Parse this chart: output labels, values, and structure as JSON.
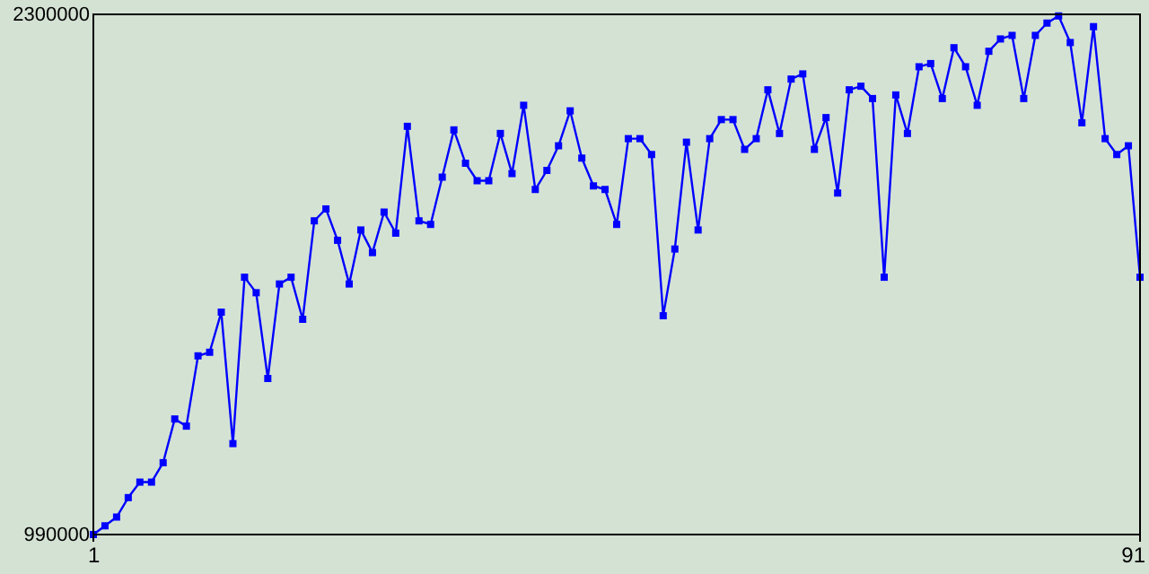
{
  "chart_data": {
    "type": "line",
    "x": [
      1,
      2,
      3,
      4,
      5,
      6,
      7,
      8,
      9,
      10,
      11,
      12,
      13,
      14,
      15,
      16,
      17,
      18,
      19,
      20,
      21,
      22,
      23,
      24,
      25,
      26,
      27,
      28,
      29,
      30,
      31,
      32,
      33,
      34,
      35,
      36,
      37,
      38,
      39,
      40,
      41,
      42,
      43,
      44,
      45,
      46,
      47,
      48,
      49,
      50,
      51,
      52,
      53,
      54,
      55,
      56,
      57,
      58,
      59,
      60,
      61,
      62,
      63,
      64,
      65,
      66,
      67,
      68,
      69,
      70,
      71,
      72,
      73,
      74,
      75,
      76,
      77,
      78,
      79,
      80,
      81,
      82,
      83,
      84,
      85,
      86,
      87,
      88,
      89,
      90,
      91
    ],
    "series": [
      {
        "color": "#0000ff",
        "values": [
          990000,
          1012000,
          1034000,
          1083000,
          1122000,
          1122000,
          1171000,
          1281000,
          1263000,
          1440000,
          1449000,
          1550000,
          1219000,
          1638000,
          1599000,
          1383000,
          1621000,
          1638000,
          1532000,
          1780000,
          1810000,
          1731000,
          1621000,
          1757000,
          1700000,
          1802000,
          1749000,
          2018000,
          1780000,
          1771000,
          1890000,
          2009000,
          1925000,
          1881000,
          1881000,
          2000000,
          1899000,
          2071000,
          1859000,
          1907000,
          1969000,
          2057000,
          1938000,
          1868000,
          1859000,
          1771000,
          1987000,
          1987000,
          1947000,
          1541000,
          1709000,
          1978000,
          1757000,
          1987000,
          2035000,
          2035000,
          1960000,
          1987000,
          2110000,
          2000000,
          2137000,
          2150000,
          1960000,
          2040000,
          1850000,
          2110000,
          2119000,
          2088000,
          1638000,
          2097000,
          2000000,
          2168000,
          2176000,
          2088000,
          2216000,
          2168000,
          2071000,
          2207000,
          2238000,
          2247000,
          2088000,
          2247000,
          2278000,
          2296000,
          2229000,
          2027000,
          2269000,
          1987000,
          1947000,
          1969000,
          1638000
        ]
      }
    ],
    "xlim": [
      1,
      91
    ],
    "xticks": [
      1,
      91
    ],
    "ylim": [
      990000,
      2300000
    ],
    "yticks": [
      990000,
      2300000
    ],
    "marker": "square",
    "line_style": "solid"
  }
}
